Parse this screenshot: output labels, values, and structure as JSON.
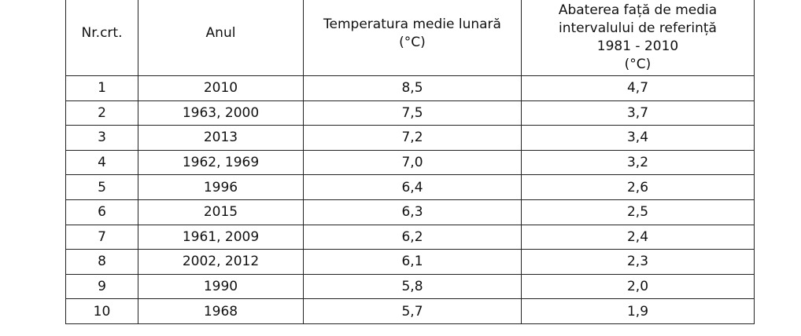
{
  "table": {
    "header": [
      {
        "lines": [
          "Nr.crt."
        ]
      },
      {
        "lines": [
          "Anul"
        ]
      },
      {
        "lines": [
          "Temperatura medie lunară"
        ],
        "unit": "(°C)"
      },
      {
        "lines": [
          "Abaterea față de media",
          "intervalului de referință",
          "1981 - 2010"
        ],
        "unit": "(°C)"
      }
    ],
    "rows": [
      [
        "1",
        "2010",
        "8,5",
        "4,7"
      ],
      [
        "2",
        "1963, 2000",
        "7,5",
        "3,7"
      ],
      [
        "3",
        "2013",
        "7,2",
        "3,4"
      ],
      [
        "4",
        "1962, 1969",
        "7,0",
        "3,2"
      ],
      [
        "5",
        "1996",
        "6,4",
        "2,6"
      ],
      [
        "6",
        "2015",
        "6,3",
        "2,5"
      ],
      [
        "7",
        "1961, 2009",
        "6,2",
        "2,4"
      ],
      [
        "8",
        "2002, 2012",
        "6,1",
        "2,3"
      ],
      [
        "9",
        "1990",
        "5,8",
        "2,0"
      ],
      [
        "10",
        "1968",
        "5,7",
        "1,9"
      ]
    ]
  }
}
